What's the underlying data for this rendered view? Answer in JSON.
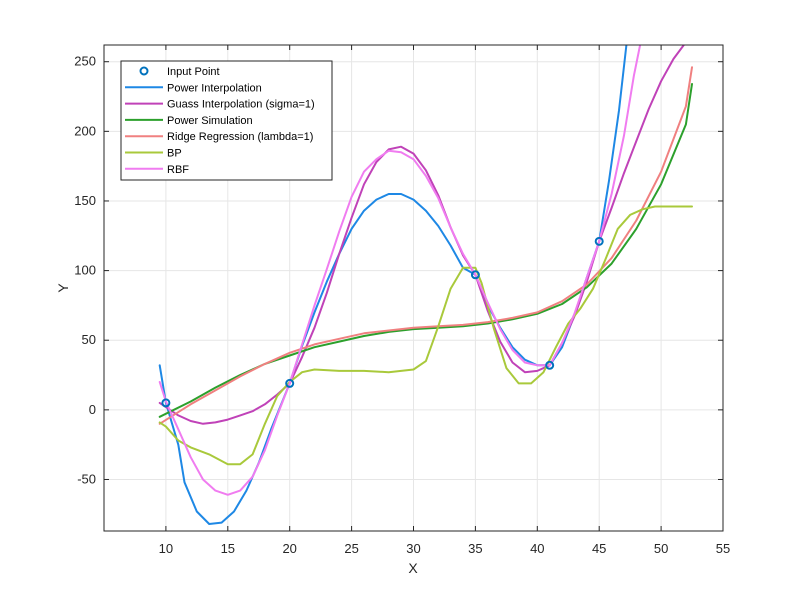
{
  "chart_data": {
    "type": "line",
    "xlabel": "X",
    "ylabel": "Y",
    "xlim": [
      5,
      55
    ],
    "ylim": [
      -87,
      262
    ],
    "xticks": [
      10,
      15,
      20,
      25,
      30,
      35,
      40,
      45,
      50,
      55
    ],
    "yticks": [
      -50,
      0,
      50,
      100,
      150,
      200,
      250
    ],
    "grid": true,
    "legend_position": "top-left",
    "colors": {
      "axis": "#262626",
      "grid": "#e6e6e6",
      "legend_border": "#262626"
    },
    "input_points": {
      "name": "Input Point",
      "color": "#0072BD",
      "points": [
        [
          10,
          5
        ],
        [
          20,
          19
        ],
        [
          35,
          97
        ],
        [
          41,
          32
        ],
        [
          45,
          121
        ]
      ]
    },
    "series": [
      {
        "name": "Power Interpolation",
        "color": "#1E88E5",
        "points": [
          [
            9.5,
            32
          ],
          [
            10,
            5
          ],
          [
            11,
            -25
          ],
          [
            11.5,
            -52
          ],
          [
            12.5,
            -73
          ],
          [
            13.5,
            -82
          ],
          [
            14.5,
            -81
          ],
          [
            15.5,
            -73
          ],
          [
            16.5,
            -58
          ],
          [
            17.5,
            -38
          ],
          [
            18.5,
            -14
          ],
          [
            20,
            19
          ],
          [
            21,
            46
          ],
          [
            22,
            70
          ],
          [
            23,
            92
          ],
          [
            24,
            112
          ],
          [
            25,
            130
          ],
          [
            26,
            143
          ],
          [
            27,
            151
          ],
          [
            28,
            155
          ],
          [
            29,
            155
          ],
          [
            30,
            151
          ],
          [
            31,
            143
          ],
          [
            32,
            132
          ],
          [
            33,
            118
          ],
          [
            34,
            102
          ],
          [
            35,
            97
          ],
          [
            36,
            75
          ],
          [
            37,
            59
          ],
          [
            38,
            45
          ],
          [
            39,
            36
          ],
          [
            40,
            32
          ],
          [
            41,
            32
          ],
          [
            42,
            45
          ],
          [
            43,
            68
          ],
          [
            44,
            95
          ],
          [
            45,
            121
          ],
          [
            45.8,
            165
          ],
          [
            46.6,
            215
          ],
          [
            47.2,
            262
          ]
        ]
      },
      {
        "name": "Guass Interpolation (sigma=1)",
        "color": "#C042B8",
        "points": [
          [
            9.5,
            5
          ],
          [
            10,
            2
          ],
          [
            11,
            -4
          ],
          [
            12,
            -8
          ],
          [
            13,
            -10
          ],
          [
            14,
            -9
          ],
          [
            15,
            -7
          ],
          [
            16,
            -4
          ],
          [
            17,
            -1
          ],
          [
            18,
            4
          ],
          [
            19,
            11
          ],
          [
            20,
            19
          ],
          [
            21,
            38
          ],
          [
            22,
            59
          ],
          [
            23,
            84
          ],
          [
            24,
            112
          ],
          [
            25,
            138
          ],
          [
            26,
            162
          ],
          [
            27,
            178
          ],
          [
            28,
            187
          ],
          [
            29,
            189
          ],
          [
            30,
            184
          ],
          [
            31,
            172
          ],
          [
            32,
            154
          ],
          [
            33,
            131
          ],
          [
            34,
            111
          ],
          [
            35,
            97
          ],
          [
            36,
            71
          ],
          [
            37,
            49
          ],
          [
            38,
            34
          ],
          [
            39,
            27
          ],
          [
            40,
            28
          ],
          [
            41,
            32
          ],
          [
            42,
            48
          ],
          [
            43,
            67
          ],
          [
            44,
            92
          ],
          [
            45,
            121
          ],
          [
            46,
            145
          ],
          [
            47,
            170
          ],
          [
            48,
            193
          ],
          [
            49,
            216
          ],
          [
            50,
            236
          ],
          [
            51,
            252
          ],
          [
            52,
            264
          ]
        ]
      },
      {
        "name": "Power Simulation",
        "color": "#2CA02C",
        "points": [
          [
            9.5,
            -5
          ],
          [
            12,
            6
          ],
          [
            14,
            16
          ],
          [
            16,
            25
          ],
          [
            18,
            33
          ],
          [
            20,
            39
          ],
          [
            22,
            45
          ],
          [
            24,
            49
          ],
          [
            26,
            53
          ],
          [
            28,
            56
          ],
          [
            30,
            58
          ],
          [
            32,
            59
          ],
          [
            34,
            60
          ],
          [
            36,
            62
          ],
          [
            38,
            65
          ],
          [
            40,
            69
          ],
          [
            42,
            76
          ],
          [
            44,
            88
          ],
          [
            46,
            105
          ],
          [
            48,
            130
          ],
          [
            50,
            162
          ],
          [
            52,
            205
          ],
          [
            52.5,
            234
          ]
        ]
      },
      {
        "name": "Ridge Regression (lambda=1)",
        "color": "#F08080",
        "points": [
          [
            9.5,
            -10
          ],
          [
            12,
            4
          ],
          [
            14,
            14
          ],
          [
            16,
            24
          ],
          [
            18,
            33
          ],
          [
            20,
            41
          ],
          [
            22,
            47
          ],
          [
            24,
            51
          ],
          [
            26,
            55
          ],
          [
            28,
            57
          ],
          [
            30,
            59
          ],
          [
            32,
            60
          ],
          [
            34,
            61
          ],
          [
            36,
            63
          ],
          [
            38,
            66
          ],
          [
            40,
            70
          ],
          [
            42,
            78
          ],
          [
            44,
            90
          ],
          [
            46,
            109
          ],
          [
            48,
            136
          ],
          [
            50,
            171
          ],
          [
            52,
            218
          ],
          [
            52.5,
            246
          ]
        ]
      },
      {
        "name": "BP",
        "color": "#A9C93B",
        "points": [
          [
            9.5,
            -9
          ],
          [
            10,
            -12
          ],
          [
            11,
            -22
          ],
          [
            12,
            -27
          ],
          [
            13.5,
            -32
          ],
          [
            15,
            -39
          ],
          [
            16,
            -39
          ],
          [
            17,
            -32
          ],
          [
            18,
            -10
          ],
          [
            19,
            10
          ],
          [
            20,
            20
          ],
          [
            21,
            27
          ],
          [
            22,
            29
          ],
          [
            24,
            28
          ],
          [
            26,
            28
          ],
          [
            28,
            27
          ],
          [
            29,
            28
          ],
          [
            30,
            29
          ],
          [
            31,
            35
          ],
          [
            32,
            60
          ],
          [
            33,
            87
          ],
          [
            34,
            102
          ],
          [
            35,
            102
          ],
          [
            35.5,
            91
          ],
          [
            36.5,
            58
          ],
          [
            37.5,
            30
          ],
          [
            38.5,
            19
          ],
          [
            39.5,
            19
          ],
          [
            40.5,
            27
          ],
          [
            41.5,
            45
          ],
          [
            42.5,
            62
          ],
          [
            43.5,
            73
          ],
          [
            44.5,
            87
          ],
          [
            45.5,
            108
          ],
          [
            46.5,
            130
          ],
          [
            47.5,
            140
          ],
          [
            48.5,
            144
          ],
          [
            49.5,
            146
          ],
          [
            51,
            146
          ],
          [
            52.5,
            146
          ]
        ]
      },
      {
        "name": "RBF",
        "color": "#F07CF0",
        "points": [
          [
            9.5,
            20
          ],
          [
            10,
            6
          ],
          [
            11,
            -14
          ],
          [
            12,
            -34
          ],
          [
            13,
            -50
          ],
          [
            14,
            -58
          ],
          [
            15,
            -61
          ],
          [
            16,
            -58
          ],
          [
            17,
            -48
          ],
          [
            18,
            -29
          ],
          [
            19,
            -4
          ],
          [
            20,
            19
          ],
          [
            21,
            47
          ],
          [
            22,
            75
          ],
          [
            23,
            101
          ],
          [
            24,
            128
          ],
          [
            25,
            153
          ],
          [
            26,
            171
          ],
          [
            27,
            180
          ],
          [
            28,
            186
          ],
          [
            29,
            185
          ],
          [
            30,
            180
          ],
          [
            31,
            168
          ],
          [
            32,
            152
          ],
          [
            33,
            131
          ],
          [
            34,
            112
          ],
          [
            35,
            97
          ],
          [
            36,
            77
          ],
          [
            37,
            58
          ],
          [
            38,
            43
          ],
          [
            39,
            34
          ],
          [
            40,
            32
          ],
          [
            41,
            32
          ],
          [
            42,
            48
          ],
          [
            43,
            69
          ],
          [
            44,
            95
          ],
          [
            45,
            121
          ],
          [
            46,
            155
          ],
          [
            47,
            197
          ],
          [
            47.8,
            240
          ],
          [
            48.3,
            262
          ]
        ]
      }
    ]
  }
}
